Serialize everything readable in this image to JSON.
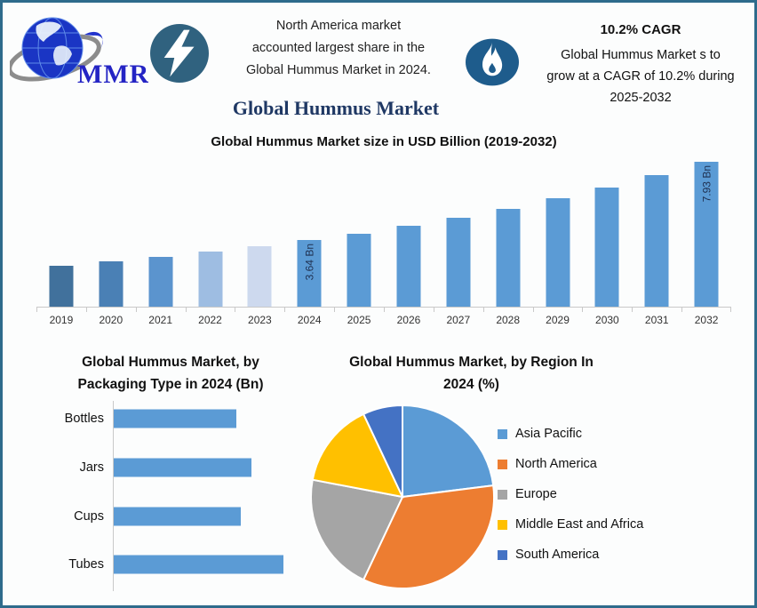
{
  "colors": {
    "border": "#2E6B8C",
    "canvas_bg": "#FCFDFD",
    "title_navy": "#1F3864",
    "bolt_badge_bg": "#30627F",
    "flame_badge_bg": "#1E5C8C",
    "primary_bar": "#5B9BD5",
    "axis": "#C9C9C9"
  },
  "header": {
    "logo_text": "MMR",
    "note_left": "North America market accounted largest share in the Global Hummus Market in 2024.",
    "note_left_lines": [
      "North America market",
      "accounted largest share in the",
      "Global Hummus Market in 2024."
    ],
    "cagr_title": "10.2% CAGR",
    "cagr_text": "Global Hummus Market s to grow at a CAGR of 10.2% during 2025-2032",
    "cagr_lines": [
      "Global Hummus Market s to",
      "grow at a CAGR of 10.2% during",
      "2025-2032"
    ]
  },
  "main_title": "Global Hummus Market",
  "chart_data": [
    {
      "type": "bar",
      "title": "Global Hummus Market size in USD Billion (2019-2032)",
      "categories": [
        "2019",
        "2020",
        "2021",
        "2022",
        "2023",
        "2024",
        "2025",
        "2026",
        "2027",
        "2028",
        "2029",
        "2030",
        "2031",
        "2032"
      ],
      "values": [
        2.25,
        2.48,
        2.73,
        3.01,
        3.31,
        3.64,
        4.01,
        4.42,
        4.87,
        5.37,
        5.92,
        6.52,
        7.19,
        7.93
      ],
      "ylabel": "USD Billion",
      "ylim": [
        0,
        8
      ],
      "grid": false,
      "data_labels": {
        "2024": "3.64 Bn",
        "2032": "7.93 Bn"
      },
      "bar_colors": [
        "#41719C",
        "#4A80B5",
        "#5B94CE",
        "#9EBDE2",
        "#CDD9EE",
        "#5B9BD5",
        "#5B9BD5",
        "#5B9BD5",
        "#5B9BD5",
        "#5B9BD5",
        "#5B9BD5",
        "#5B9BD5",
        "#5B9BD5",
        "#5B9BD5"
      ]
    },
    {
      "type": "bar",
      "orientation": "horizontal",
      "title": "Global Hummus Market, by Packaging Type in 2024 (Bn)",
      "title_lines": [
        "Global Hummus Market, by",
        "Packaging Type in 2024 (Bn)"
      ],
      "categories": [
        "Bottles",
        "Jars",
        "Cups",
        "Tubes"
      ],
      "values": [
        0.8,
        0.9,
        0.83,
        1.11
      ],
      "color": "#5B9BD5",
      "grid": false
    },
    {
      "type": "pie",
      "title": "Global Hummus Market, by Region In 2024 (%)",
      "title_lines": [
        "Global Hummus Market, by Region In",
        "2024 (%)"
      ],
      "labels": [
        "Asia Pacific",
        "North America",
        "Europe",
        "Middle East and Africa",
        "South America"
      ],
      "values": [
        23,
        34,
        21,
        15,
        7
      ],
      "colors": [
        "#5B9BD5",
        "#ED7D31",
        "#A5A5A5",
        "#FFC000",
        "#4472C4"
      ],
      "legend_position": "right",
      "start_angle_deg": 0,
      "direction": "clockwise"
    }
  ],
  "icons": {
    "logo": "globe-icon",
    "bolt": "lightning-icon",
    "flame": "flame-icon"
  }
}
